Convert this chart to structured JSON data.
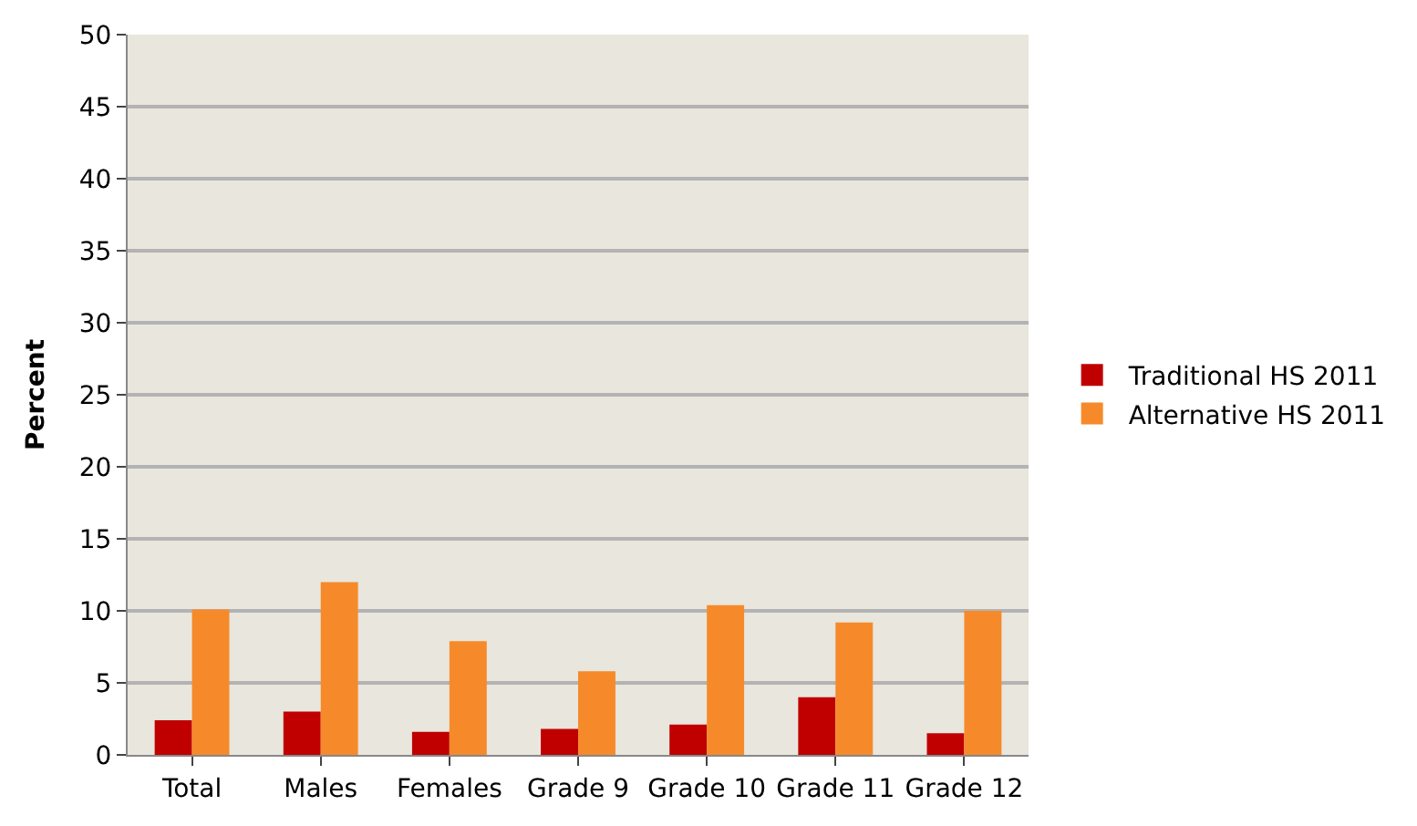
{
  "chart_data": {
    "type": "bar",
    "ylabel": "Percent",
    "categories": [
      "Total",
      "Males",
      "Females",
      "Grade 9",
      "Grade 10",
      "Grade 11",
      "Grade 12"
    ],
    "series": [
      {
        "name": "Traditional HS 2011",
        "color": "#c00000",
        "values": [
          2.4,
          3.0,
          1.6,
          1.8,
          2.1,
          4.0,
          1.5
        ]
      },
      {
        "name": "Alternative HS 2011",
        "color": "#f68a2a",
        "values": [
          10.1,
          12.0,
          7.9,
          5.8,
          10.4,
          9.2,
          10.0
        ]
      }
    ],
    "ylim": [
      0,
      50
    ],
    "yticks": [
      0,
      5,
      10,
      15,
      20,
      25,
      30,
      35,
      40,
      45,
      50
    ],
    "grid": "y",
    "legend": "right"
  }
}
